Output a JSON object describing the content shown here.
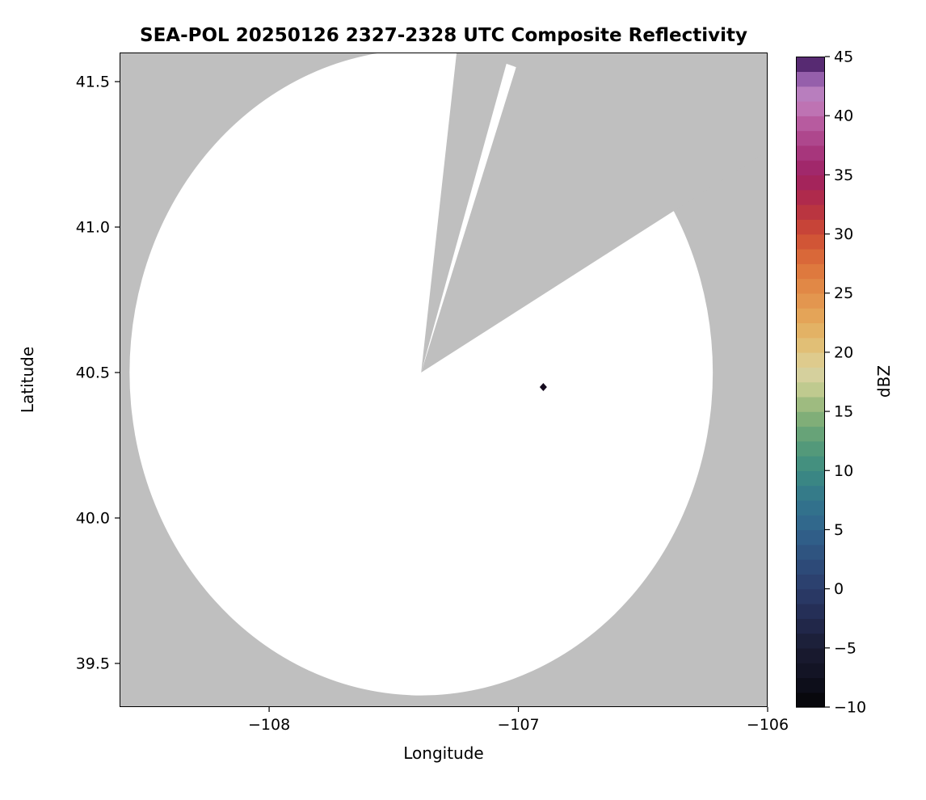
{
  "chart_data": {
    "type": "heatmap",
    "title": "SEA-POL 20250126 2327-2328 UTC Composite Reflectivity",
    "xlabel": "Longitude",
    "ylabel": "Latitude",
    "xlim": [
      -108.6,
      -106.0
    ],
    "ylim": [
      39.35,
      41.6
    ],
    "xticks": [
      -108,
      -107,
      -106
    ],
    "yticks": [
      39.5,
      40.0,
      40.5,
      41.0,
      41.5
    ],
    "grid": "off",
    "plot_bg_color": "#bfbfbf",
    "coverage_color": "#ffffff",
    "radar": {
      "description": "white circular radar coverage area on gray background with two gray blocked sectors radiating from the radar site",
      "center_lon": -107.39,
      "center_lat": 40.5,
      "radius_lon_deg": 1.17,
      "radius_lat_deg": 1.11,
      "blocked_sectors_azimuth_deg": [
        [
          7,
          17
        ],
        [
          19,
          60
        ]
      ]
    },
    "markers": [
      {
        "lon": -106.9,
        "lat": 40.45,
        "shape": "diamond",
        "color": "#140a1e"
      }
    ],
    "colorbar": {
      "label": "dBZ",
      "min": -10,
      "max": 45,
      "ticks": [
        45,
        40,
        35,
        30,
        25,
        20,
        15,
        10,
        5,
        0,
        -5,
        -10
      ],
      "segment_step": 1.25,
      "legend_position": "right",
      "color_stops": [
        [
          -10,
          "#050507"
        ],
        [
          -7.5,
          "#101120"
        ],
        [
          -5,
          "#1a1c33"
        ],
        [
          -2.5,
          "#232b50"
        ],
        [
          0,
          "#2b3c6a"
        ],
        [
          2.5,
          "#2e4f7c"
        ],
        [
          5,
          "#30638c"
        ],
        [
          7.5,
          "#33768c"
        ],
        [
          10,
          "#3c8b81"
        ],
        [
          12.5,
          "#5a9d78"
        ],
        [
          15,
          "#8db378"
        ],
        [
          17,
          "#c2cb91"
        ],
        [
          18.5,
          "#dbd2a1"
        ],
        [
          20,
          "#e0c67e"
        ],
        [
          22.5,
          "#e4ab5c"
        ],
        [
          25,
          "#e28f4a"
        ],
        [
          27.5,
          "#dd713a"
        ],
        [
          30,
          "#cd4b34"
        ],
        [
          32.5,
          "#b42d44"
        ],
        [
          35,
          "#9e2162"
        ],
        [
          37.5,
          "#aa3d84"
        ],
        [
          40,
          "#bb65a8"
        ],
        [
          41.5,
          "#c286c2"
        ],
        [
          43,
          "#9b64b0"
        ],
        [
          44.2,
          "#643481"
        ],
        [
          45,
          "#28063c"
        ]
      ]
    }
  }
}
